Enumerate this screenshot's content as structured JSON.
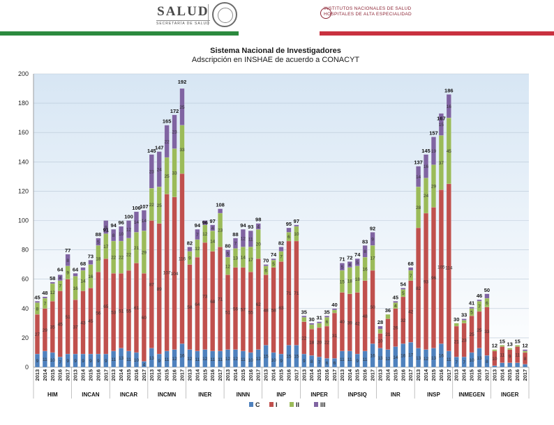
{
  "header": {
    "salud_title": "SALUD",
    "salud_subtitle": "SECRETARÍA DE SALUD",
    "institutes_line1": "INSTITUTOS NACIONALES DE SALUD",
    "institutes_line2": "HOSPITALES DE ALTA ESPECIALIDAD",
    "green": "#2b8a3e",
    "red": "#c9313f"
  },
  "chart_data": {
    "type": "bar",
    "stacked": true,
    "title": "Sistema Nacional de Investigadores",
    "subtitle": "Adscripción en INSHAE de acuerdo a CONACYT",
    "ylim": [
      0,
      200
    ],
    "yticks": [
      0,
      20,
      40,
      60,
      80,
      100,
      120,
      140,
      160,
      180,
      200
    ],
    "series_names": [
      "C",
      "I",
      "II",
      "III"
    ],
    "colors": [
      "#4f81bd",
      "#c0504d",
      "#9bbb59",
      "#8064a2"
    ],
    "institutions": [
      {
        "name": "HIM",
        "years": [
          "2013",
          "2014",
          "2015",
          "2016",
          "2017"
        ],
        "C": [
          9,
          11,
          10,
          7,
          9
        ],
        "I": [
          27,
          29,
          35,
          45,
          51
        ],
        "II": [
          8,
          7,
          12,
          7,
          9
        ],
        "III": [
          1,
          1,
          1,
          4,
          8
        ],
        "total": [
          45,
          48,
          58,
          64,
          77
        ]
      },
      {
        "name": "INCAN",
        "years": [
          "2013",
          "2014",
          "2015",
          "2016",
          "2017"
        ],
        "C": [
          9,
          9,
          9,
          9,
          9
        ],
        "I": [
          37,
          43,
          45,
          56,
          65
        ],
        "II": [
          16,
          14,
          16,
          18,
          17
        ],
        "III": [
          2,
          2,
          3,
          5,
          9
        ],
        "total": [
          64,
          68,
          73,
          88,
          91
        ]
      },
      {
        "name": "INCAR",
        "years": [
          "2013",
          "2014",
          "2015",
          "2016",
          "2017"
        ],
        "C": [
          11,
          13,
          11,
          10,
          4
        ],
        "I": [
          53,
          51,
          55,
          61,
          60
        ],
        "II": [
          22,
          22,
          22,
          21,
          29
        ],
        "III": [
          8,
          10,
          12,
          14,
          14
        ],
        "total": [
          94,
          96,
          100,
          106,
          107
        ]
      },
      {
        "name": "INCMN",
        "years": [
          "2013",
          "2014",
          "2015",
          "2016",
          "2017"
        ],
        "C": [
          13,
          9,
          11,
          12,
          16
        ],
        "I": [
          87,
          89,
          107,
          104,
          116
        ],
        "II": [
          22,
          25,
          25,
          33,
          33
        ],
        "III": [
          23,
          24,
          22,
          23,
          25
        ],
        "total": [
          145,
          147,
          165,
          172,
          192
        ]
      },
      {
        "name": "INER",
        "years": [
          "2013",
          "2014",
          "2015",
          "2016",
          "2017"
        ],
        "C": [
          12,
          11,
          12,
          11,
          11
        ],
        "I": [
          58,
          64,
          73,
          68,
          71
        ],
        "II": [
          9,
          12,
          12,
          14,
          23
        ],
        "III": [
          3,
          7,
          3,
          4,
          3
        ],
        "total": [
          82,
          94,
          96,
          97,
          108
        ]
      },
      {
        "name": "INNN",
        "years": [
          "2013",
          "2014",
          "2015",
          "2016",
          "2017"
        ],
        "C": [
          12,
          12,
          11,
          10,
          12
        ],
        "I": [
          51,
          56,
          57,
          55,
          62
        ],
        "II": [
          12,
          13,
          14,
          17,
          20
        ],
        "III": [
          5,
          7,
          12,
          11,
          4
        ],
        "total": [
          80,
          88,
          94,
          93,
          98
        ]
      },
      {
        "name": "INP",
        "years": [
          "2013",
          "2014",
          "2015",
          "2016",
          "2017"
        ],
        "C": [
          15,
          10,
          9,
          15,
          15
        ],
        "I": [
          48,
          58,
          63,
          71,
          71
        ],
        "II": [
          6,
          5,
          7,
          6,
          10
        ],
        "III": [
          1,
          1,
          3,
          3,
          1
        ],
        "total": [
          70,
          74,
          82,
          95,
          97
        ]
      },
      {
        "name": "INPER",
        "years": [
          "2013",
          "2014",
          "2015",
          "2016",
          "2017"
        ],
        "C": [
          9,
          8,
          7,
          6,
          6
        ],
        "I": [
          22,
          18,
          20,
          22,
          31
        ],
        "II": [
          3,
          3,
          3,
          6,
          2
        ],
        "III": [
          1,
          1,
          1,
          1,
          1
        ],
        "total": [
          35,
          30,
          31,
          35,
          40
        ]
      },
      {
        "name": "INPSIQ",
        "years": [
          "2013",
          "2014",
          "2015",
          "2016",
          "2017"
        ],
        "C": [
          11,
          11,
          9,
          11,
          16
        ],
        "I": [
          40,
          39,
          42,
          48,
          50
        ],
        "II": [
          15,
          18,
          18,
          16,
          17
        ],
        "III": [
          5,
          4,
          5,
          8,
          9
        ],
        "total": [
          71,
          72,
          74,
          83,
          92
        ]
      },
      {
        "name": "INR",
        "years": [
          "2013",
          "2014",
          "2015",
          "2016",
          "2017"
        ],
        "C": [
          13,
          12,
          14,
          16,
          17
        ],
        "I": [
          10,
          21,
          26,
          32,
          42
        ],
        "II": [
          3,
          3,
          4,
          5,
          7
        ],
        "III": [
          2,
          0,
          1,
          1,
          2
        ],
        "total": [
          28,
          36,
          45,
          54,
          68
        ]
      },
      {
        "name": "INSP",
        "years": [
          "2013",
          "2014",
          "2015",
          "2016",
          "2017"
        ],
        "C": [
          13,
          12,
          13,
          16,
          11
        ],
        "I": [
          82,
          93,
          96,
          105,
          114
        ],
        "II": [
          28,
          24,
          29,
          37,
          45
        ],
        "III": [
          14,
          16,
          19,
          15,
          16
        ],
        "total": [
          137,
          145,
          157,
          167,
          186
        ]
      },
      {
        "name": "INMEGEN",
        "years": [
          "2013",
          "2014",
          "2015",
          "2016",
          "2017"
        ],
        "C": [
          7,
          7,
          10,
          13,
          8
        ],
        "I": [
          21,
          23,
          25,
          25,
          33
        ],
        "II": [
          2,
          2,
          5,
          7,
          6
        ],
        "III": [
          0,
          1,
          1,
          1,
          3
        ],
        "total": [
          30,
          33,
          41,
          46,
          50
        ]
      },
      {
        "name": "INGER",
        "years": [
          "2013",
          "2014",
          "2015",
          "2016",
          "2017"
        ],
        "C": [
          1,
          3,
          3,
          3,
          2
        ],
        "I": [
          10,
          11,
          9,
          11,
          8
        ],
        "II": [
          1,
          1,
          1,
          1,
          1
        ],
        "III": [
          0,
          0,
          0,
          0,
          1
        ],
        "total": [
          12,
          15,
          13,
          15,
          12
        ]
      }
    ]
  }
}
